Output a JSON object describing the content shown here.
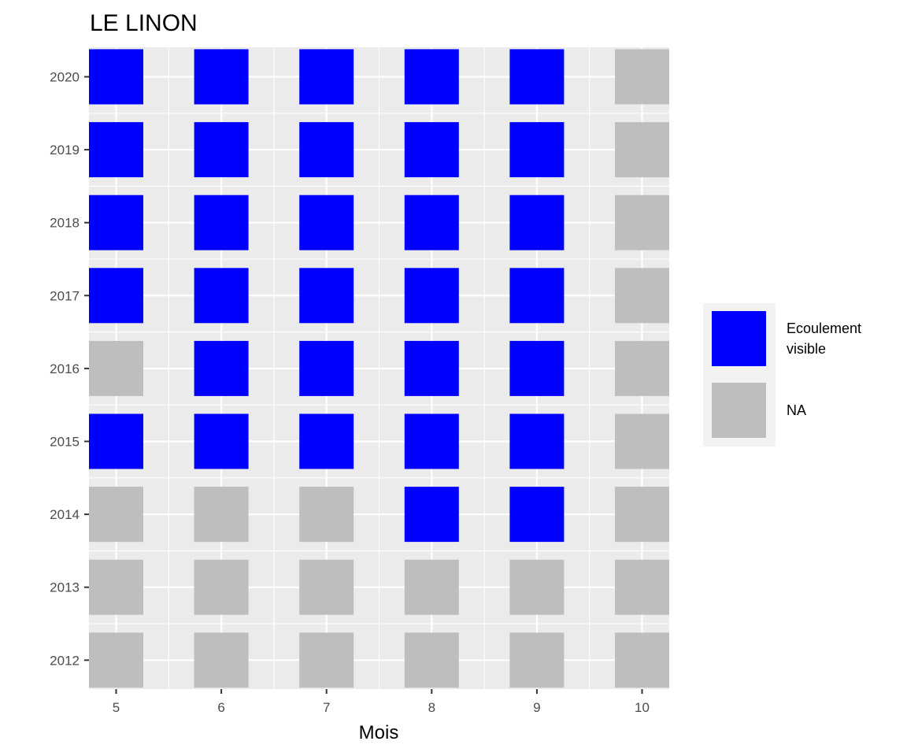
{
  "chart_data": {
    "type": "heatmap",
    "title": "LE LINON",
    "xlabel": "Mois",
    "ylabel": "",
    "x": [
      5,
      6,
      7,
      8,
      9,
      10
    ],
    "y": [
      2012,
      2013,
      2014,
      2015,
      2016,
      2017,
      2018,
      2019,
      2020
    ],
    "cells": {
      "2020": [
        "Ecoulement visible",
        "Ecoulement visible",
        "Ecoulement visible",
        "Ecoulement visible",
        "Ecoulement visible",
        "NA"
      ],
      "2019": [
        "Ecoulement visible",
        "Ecoulement visible",
        "Ecoulement visible",
        "Ecoulement visible",
        "Ecoulement visible",
        "NA"
      ],
      "2018": [
        "Ecoulement visible",
        "Ecoulement visible",
        "Ecoulement visible",
        "Ecoulement visible",
        "Ecoulement visible",
        "NA"
      ],
      "2017": [
        "Ecoulement visible",
        "Ecoulement visible",
        "Ecoulement visible",
        "Ecoulement visible",
        "Ecoulement visible",
        "NA"
      ],
      "2016": [
        "NA",
        "Ecoulement visible",
        "Ecoulement visible",
        "Ecoulement visible",
        "Ecoulement visible",
        "NA"
      ],
      "2015": [
        "Ecoulement visible",
        "Ecoulement visible",
        "Ecoulement visible",
        "Ecoulement visible",
        "Ecoulement visible",
        "NA"
      ],
      "2014": [
        "NA",
        "NA",
        "NA",
        "Ecoulement visible",
        "Ecoulement visible",
        "NA"
      ],
      "2013": [
        "NA",
        "NA",
        "NA",
        "NA",
        "NA",
        "NA"
      ],
      "2012": [
        "NA",
        "NA",
        "NA",
        "NA",
        "NA",
        "NA"
      ]
    },
    "legend": {
      "position": "right",
      "entries": [
        {
          "key": "Ecoulement visible",
          "lines": [
            "Ecoulement",
            "visible"
          ],
          "color": "#0000ff"
        },
        {
          "key": "NA",
          "lines": [
            "NA"
          ],
          "color": "#bebebe"
        }
      ]
    },
    "colors": {
      "panel_background": "#ebebeb",
      "grid": "#ffffff",
      "legend_background": "#f2f2f2"
    },
    "grid": true
  }
}
